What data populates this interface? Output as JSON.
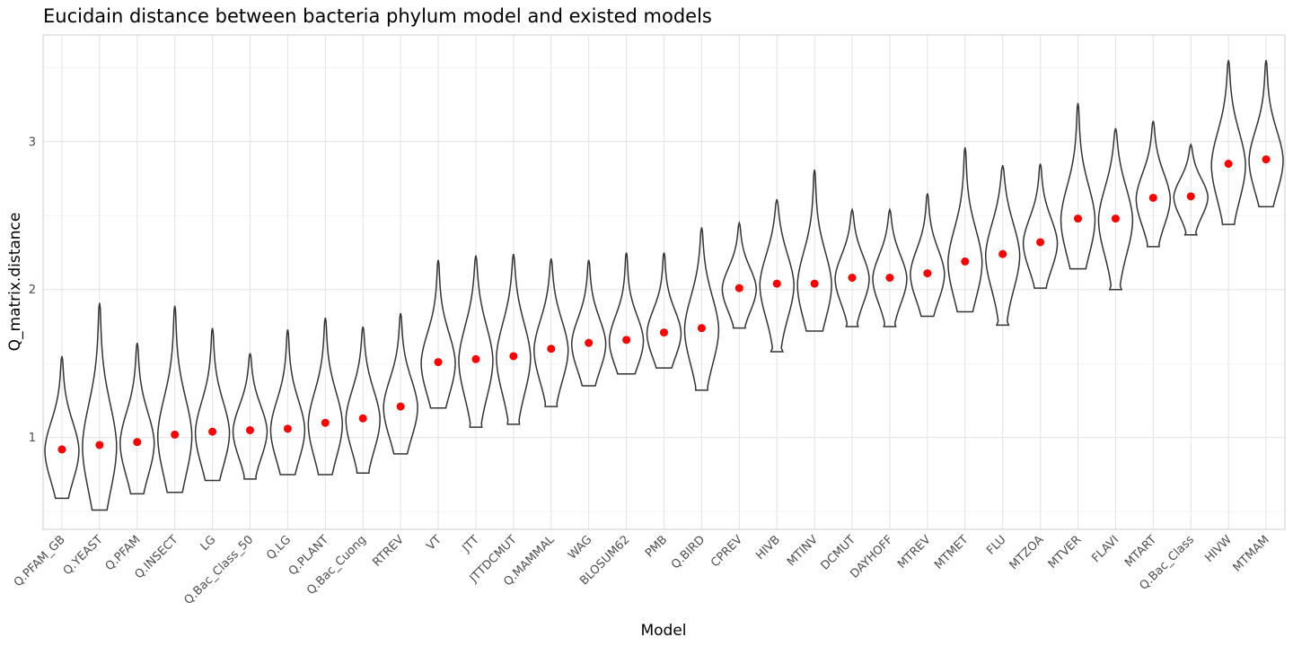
{
  "chart_data": {
    "type": "violin",
    "title": "Eucidain distance between bacteria phylum model and existed models",
    "xlabel": "Model",
    "ylabel": "Q_matrix.distance",
    "ylim": [
      0.38,
      3.72
    ],
    "yticks": [
      1,
      2,
      3
    ],
    "grid": true,
    "mean_color": "#ff0000",
    "violin_color": "#333333",
    "models": [
      {
        "name": "Q.PFAM_GB",
        "min": 0.59,
        "max": 1.55,
        "mean": 0.92
      },
      {
        "name": "Q.YEAST",
        "min": 0.51,
        "max": 1.91,
        "mean": 0.95
      },
      {
        "name": "Q.PFAM",
        "min": 0.62,
        "max": 1.64,
        "mean": 0.97
      },
      {
        "name": "Q.INSECT",
        "min": 0.63,
        "max": 1.89,
        "mean": 1.02
      },
      {
        "name": "LG",
        "min": 0.71,
        "max": 1.74,
        "mean": 1.04
      },
      {
        "name": "Q.Bac_Class_50",
        "min": 0.72,
        "max": 1.57,
        "mean": 1.05
      },
      {
        "name": "Q.LG",
        "min": 0.75,
        "max": 1.73,
        "mean": 1.06
      },
      {
        "name": "Q.PLANT",
        "min": 0.75,
        "max": 1.81,
        "mean": 1.1
      },
      {
        "name": "Q.Bac_Cuong",
        "min": 0.76,
        "max": 1.75,
        "mean": 1.13
      },
      {
        "name": "RTREV",
        "min": 0.89,
        "max": 1.84,
        "mean": 1.21
      },
      {
        "name": "VT",
        "min": 1.2,
        "max": 2.2,
        "mean": 1.51
      },
      {
        "name": "JTT",
        "min": 1.07,
        "max": 2.23,
        "mean": 1.53
      },
      {
        "name": "JTTDCMUT",
        "min": 1.09,
        "max": 2.24,
        "mean": 1.55
      },
      {
        "name": "Q.MAMMAL",
        "min": 1.21,
        "max": 2.21,
        "mean": 1.6
      },
      {
        "name": "WAG",
        "min": 1.35,
        "max": 2.2,
        "mean": 1.64
      },
      {
        "name": "BLOSUM62",
        "min": 1.43,
        "max": 2.25,
        "mean": 1.66
      },
      {
        "name": "PMB",
        "min": 1.47,
        "max": 2.25,
        "mean": 1.71
      },
      {
        "name": "Q.BIRD",
        "min": 1.32,
        "max": 2.42,
        "mean": 1.74
      },
      {
        "name": "CPREV",
        "min": 1.74,
        "max": 2.45,
        "mean": 2.01
      },
      {
        "name": "HIVB",
        "min": 1.58,
        "max": 2.61,
        "mean": 2.04
      },
      {
        "name": "MTINV",
        "min": 1.72,
        "max": 2.81,
        "mean": 2.04
      },
      {
        "name": "DCMUT",
        "min": 1.75,
        "max": 2.54,
        "mean": 2.08
      },
      {
        "name": "DAYHOFF",
        "min": 1.75,
        "max": 2.54,
        "mean": 2.08
      },
      {
        "name": "MTREV",
        "min": 1.82,
        "max": 2.65,
        "mean": 2.11
      },
      {
        "name": "MTMET",
        "min": 1.85,
        "max": 2.96,
        "mean": 2.19
      },
      {
        "name": "FLU",
        "min": 1.76,
        "max": 2.84,
        "mean": 2.24
      },
      {
        "name": "MTZOA",
        "min": 2.01,
        "max": 2.85,
        "mean": 2.32
      },
      {
        "name": "MTVER",
        "min": 2.14,
        "max": 3.26,
        "mean": 2.48
      },
      {
        "name": "FLAVI",
        "min": 2.0,
        "max": 3.09,
        "mean": 2.48
      },
      {
        "name": "MTART",
        "min": 2.29,
        "max": 3.14,
        "mean": 2.62
      },
      {
        "name": "Q.Bac_Class",
        "min": 2.37,
        "max": 2.98,
        "mean": 2.63
      },
      {
        "name": "HIVW",
        "min": 2.44,
        "max": 3.55,
        "mean": 2.85
      },
      {
        "name": "MTMAM",
        "min": 2.56,
        "max": 3.55,
        "mean": 2.88
      }
    ]
  }
}
